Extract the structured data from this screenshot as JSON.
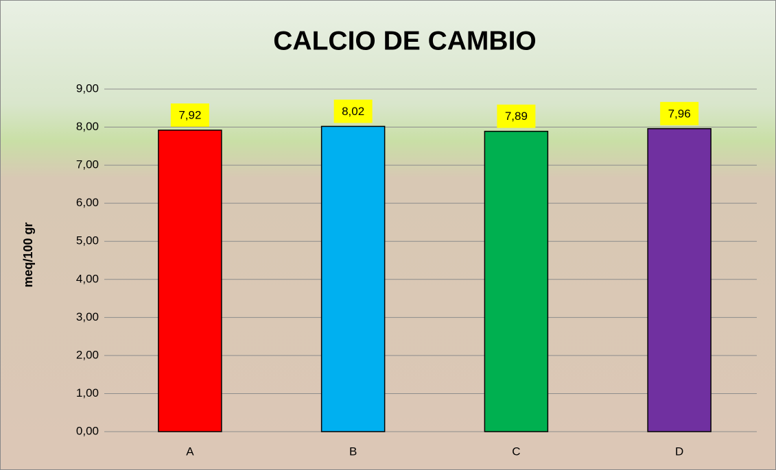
{
  "chart_data": {
    "type": "bar",
    "title": "CALCIO DE CAMBIO",
    "y_label": "meq/100 gr",
    "categories": [
      "A",
      "B",
      "C",
      "D"
    ],
    "values": [
      7.92,
      8.02,
      7.89,
      7.96
    ],
    "value_labels": [
      "7,92",
      "8,02",
      "7,89",
      "7,96"
    ],
    "colors": [
      "#ff0000",
      "#00b0f0",
      "#00b050",
      "#7030a0"
    ],
    "ylim": [
      0,
      9
    ],
    "yticks": [
      {
        "value": 0,
        "label": "0,00"
      },
      {
        "value": 1,
        "label": "1,00"
      },
      {
        "value": 2,
        "label": "2,00"
      },
      {
        "value": 3,
        "label": "3,00"
      },
      {
        "value": 4,
        "label": "4,00"
      },
      {
        "value": 5,
        "label": "5,00"
      },
      {
        "value": 6,
        "label": "6,00"
      },
      {
        "value": 7,
        "label": "7,00"
      },
      {
        "value": 8,
        "label": "8,00"
      },
      {
        "value": 9,
        "label": "9,00"
      }
    ],
    "grid": true
  }
}
